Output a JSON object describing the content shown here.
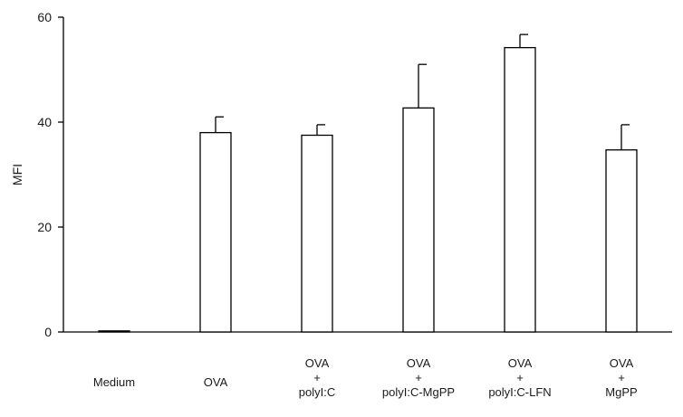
{
  "chart_data": {
    "type": "bar",
    "title": "",
    "xlabel": "",
    "ylabel": "MFI",
    "ylim": [
      0,
      60
    ],
    "yticks": [
      0,
      20,
      40,
      60
    ],
    "grid": false,
    "bar_fill": "#ffffff",
    "bar_stroke": "#000000",
    "categories": [
      [
        "Medium"
      ],
      [
        "OVA"
      ],
      [
        "OVA",
        "+",
        "polyI:C"
      ],
      [
        "OVA",
        "+",
        "polyI:C-MgPP"
      ],
      [
        "OVA",
        "+",
        "polyI:C-LFN"
      ],
      [
        "OVA",
        "+",
        "MgPP"
      ]
    ],
    "series": [
      {
        "values": [
          0.2,
          38,
          37.5,
          42.7,
          54.2,
          34.7
        ],
        "error": [
          0,
          3,
          2,
          8.3,
          2.5,
          4.8
        ]
      }
    ]
  }
}
